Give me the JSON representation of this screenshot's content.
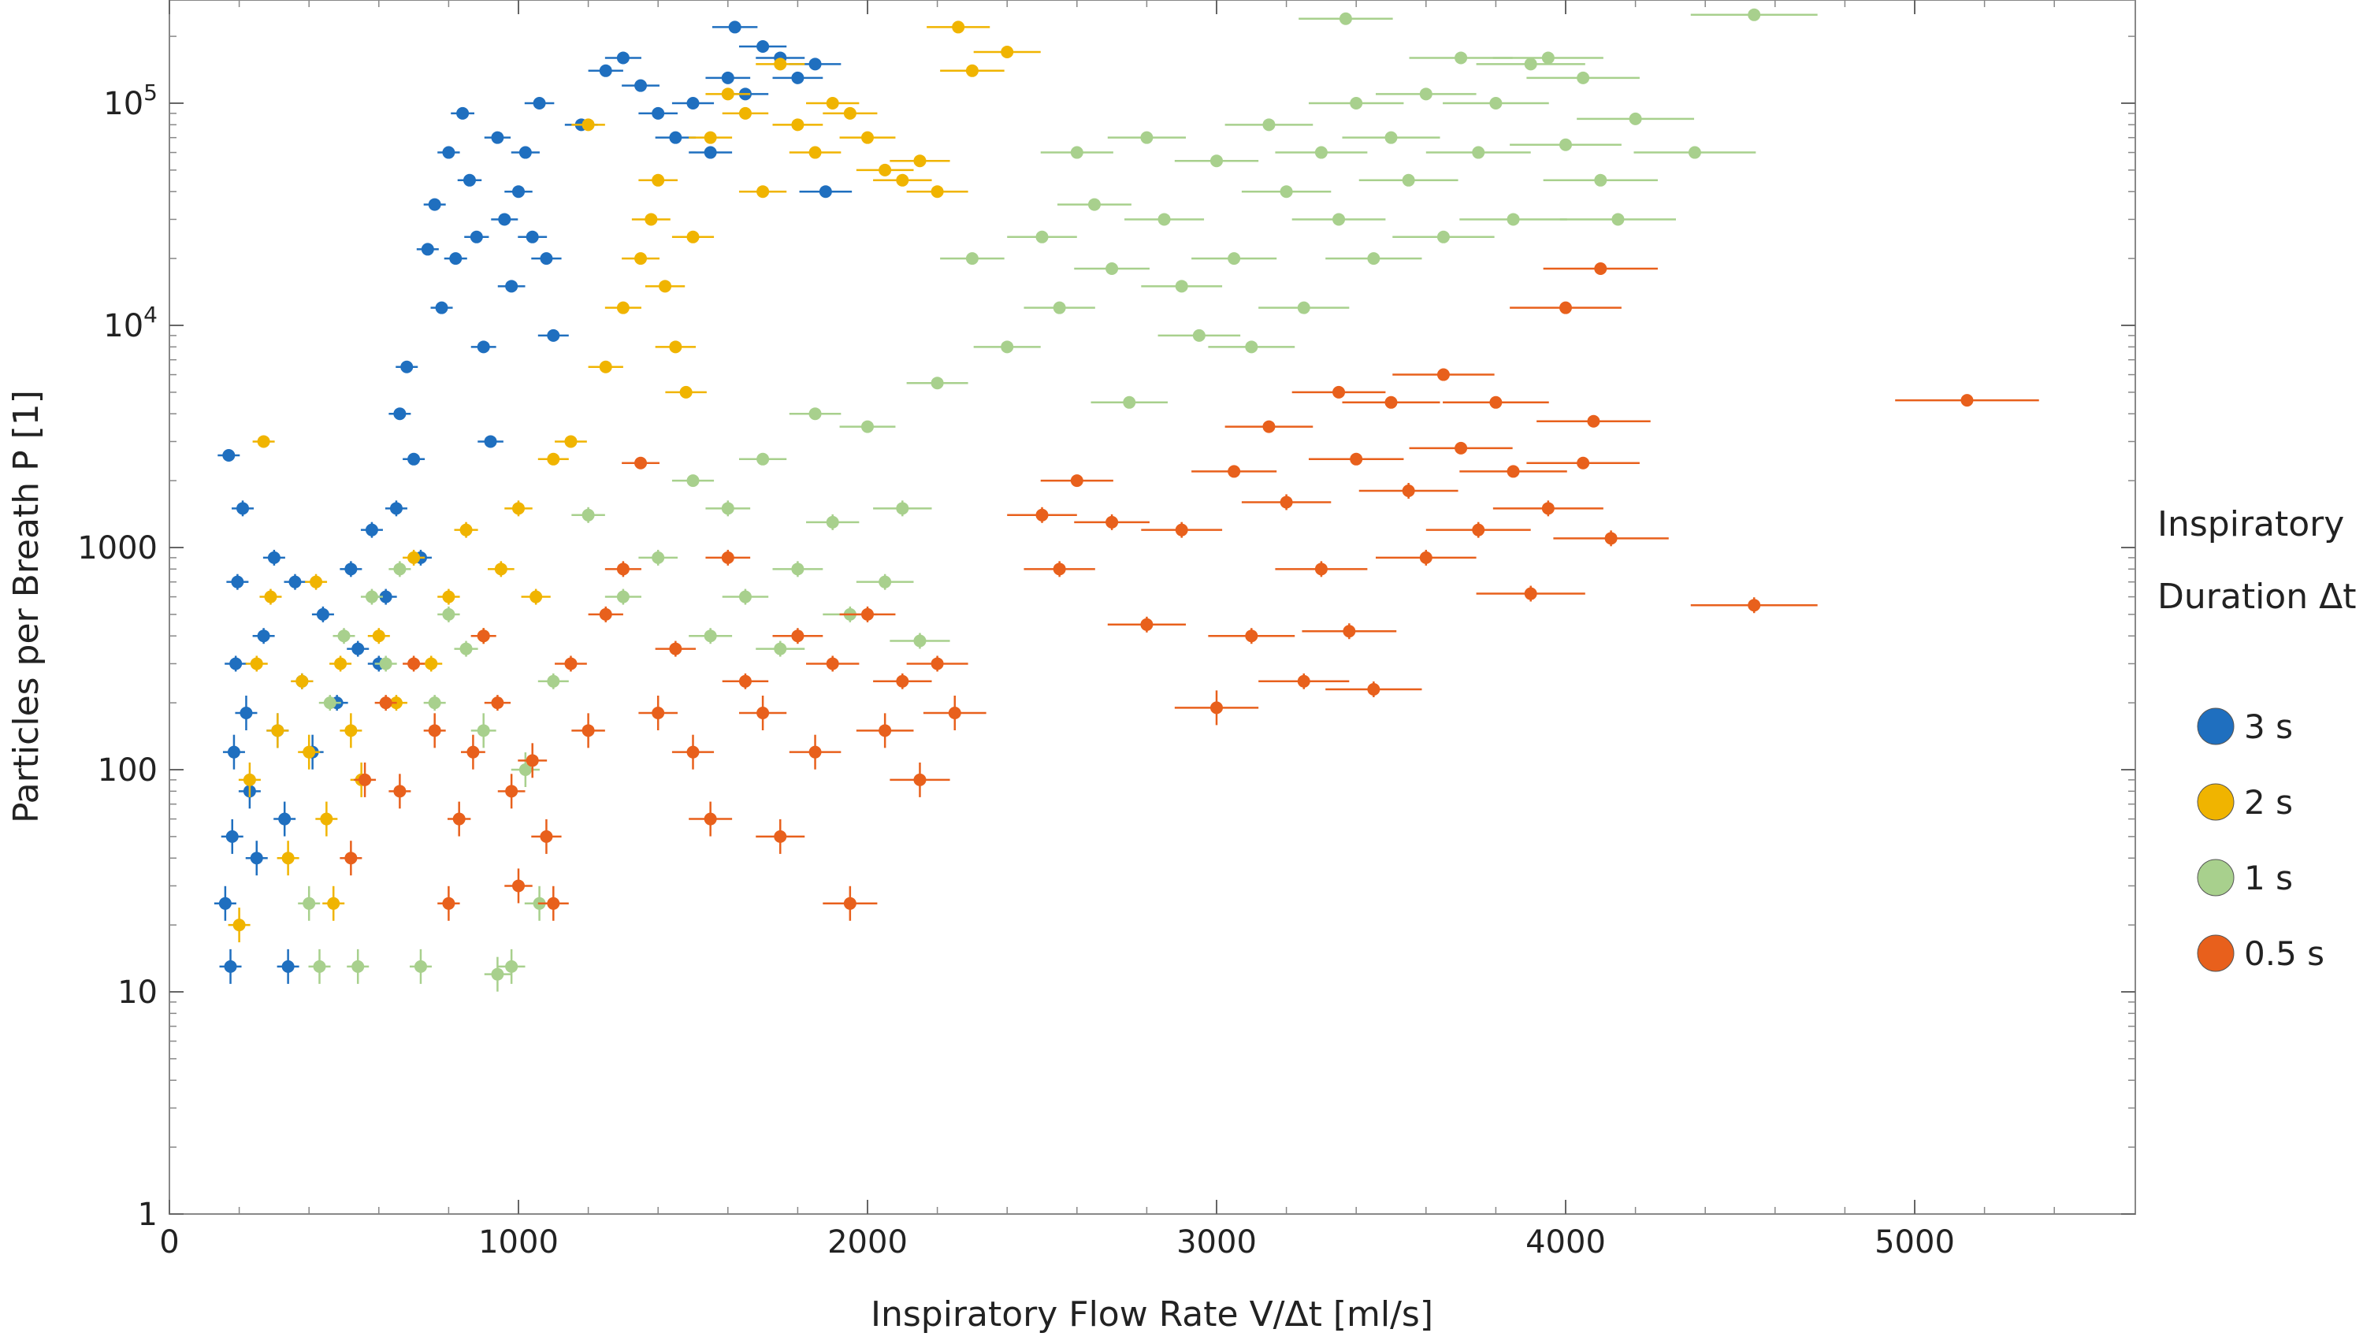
{
  "chart_data": {
    "type": "scatter",
    "title": "",
    "xlabel": "Inspiratory Flow Rate  V/Δt [ml/s]",
    "ylabel": "Particles per Breath  P [1]",
    "xlim": [
      0,
      5600
    ],
    "ylim": [
      1,
      300000
    ],
    "yscale": "log",
    "grid": false,
    "error_bars": true,
    "x_ticks": [
      0,
      1000,
      2000,
      3000,
      4000,
      5000
    ],
    "x_tick_labels": [
      "0",
      "1000",
      "2000",
      "3000",
      "4000",
      "5000"
    ],
    "y_ticks": [
      1,
      10,
      100,
      1000,
      10000,
      100000
    ],
    "y_tick_labels": [
      "1",
      "10",
      "100",
      "1000",
      "10^4",
      "10^5"
    ],
    "legend": {
      "title_line1": "Inspiratory",
      "title_line2": "Duration Δt",
      "placement": "right"
    },
    "series": [
      {
        "name": "3 s",
        "color": "#1f6fbf",
        "points": [
          [
            160,
            25
          ],
          [
            175,
            13
          ],
          [
            180,
            50
          ],
          [
            185,
            120
          ],
          [
            190,
            300
          ],
          [
            195,
            700
          ],
          [
            170,
            2600
          ],
          [
            210,
            1500
          ],
          [
            220,
            180
          ],
          [
            230,
            80
          ],
          [
            250,
            40
          ],
          [
            270,
            400
          ],
          [
            300,
            900
          ],
          [
            310,
            150
          ],
          [
            330,
            60
          ],
          [
            340,
            13
          ],
          [
            360,
            700
          ],
          [
            380,
            250
          ],
          [
            410,
            120
          ],
          [
            440,
            500
          ],
          [
            480,
            200
          ],
          [
            520,
            800
          ],
          [
            540,
            350
          ],
          [
            580,
            1200
          ],
          [
            600,
            300
          ],
          [
            620,
            600
          ],
          [
            650,
            1500
          ],
          [
            660,
            4000
          ],
          [
            680,
            6500
          ],
          [
            700,
            2500
          ],
          [
            720,
            900
          ],
          [
            740,
            22000
          ],
          [
            760,
            35000
          ],
          [
            780,
            12000
          ],
          [
            800,
            60000
          ],
          [
            820,
            20000
          ],
          [
            840,
            90000
          ],
          [
            860,
            45000
          ],
          [
            880,
            25000
          ],
          [
            900,
            8000
          ],
          [
            920,
            3000
          ],
          [
            940,
            70000
          ],
          [
            960,
            30000
          ],
          [
            980,
            15000
          ],
          [
            1000,
            40000
          ],
          [
            1020,
            60000
          ],
          [
            1040,
            25000
          ],
          [
            1060,
            100000
          ],
          [
            1080,
            20000
          ],
          [
            1100,
            9000
          ],
          [
            1180,
            80000
          ],
          [
            1250,
            140000
          ],
          [
            1300,
            160000
          ],
          [
            1350,
            120000
          ],
          [
            1400,
            90000
          ],
          [
            1450,
            70000
          ],
          [
            1500,
            100000
          ],
          [
            1550,
            60000
          ],
          [
            1600,
            130000
          ],
          [
            1620,
            220000
          ],
          [
            1650,
            110000
          ],
          [
            1700,
            180000
          ],
          [
            1750,
            160000
          ],
          [
            1800,
            130000
          ],
          [
            1850,
            150000
          ],
          [
            1880,
            40000
          ]
        ]
      },
      {
        "name": "2 s",
        "color": "#f0b400",
        "points": [
          [
            200,
            20
          ],
          [
            230,
            90
          ],
          [
            250,
            300
          ],
          [
            270,
            3000
          ],
          [
            290,
            600
          ],
          [
            310,
            150
          ],
          [
            340,
            40
          ],
          [
            380,
            250
          ],
          [
            400,
            120
          ],
          [
            420,
            700
          ],
          [
            450,
            60
          ],
          [
            470,
            25
          ],
          [
            490,
            300
          ],
          [
            520,
            150
          ],
          [
            550,
            90
          ],
          [
            600,
            400
          ],
          [
            650,
            200
          ],
          [
            700,
            900
          ],
          [
            750,
            300
          ],
          [
            800,
            600
          ],
          [
            850,
            1200
          ],
          [
            900,
            400
          ],
          [
            950,
            800
          ],
          [
            1000,
            1500
          ],
          [
            1050,
            600
          ],
          [
            1100,
            2500
          ],
          [
            1150,
            3000
          ],
          [
            1200,
            80000
          ],
          [
            1250,
            6500
          ],
          [
            1300,
            12000
          ],
          [
            1350,
            20000
          ],
          [
            1380,
            30000
          ],
          [
            1400,
            45000
          ],
          [
            1420,
            15000
          ],
          [
            1450,
            8000
          ],
          [
            1480,
            5000
          ],
          [
            1500,
            25000
          ],
          [
            1550,
            70000
          ],
          [
            1600,
            110000
          ],
          [
            1650,
            90000
          ],
          [
            1700,
            40000
          ],
          [
            1750,
            150000
          ],
          [
            1800,
            80000
          ],
          [
            1850,
            60000
          ],
          [
            1900,
            100000
          ],
          [
            1950,
            90000
          ],
          [
            2000,
            70000
          ],
          [
            2050,
            50000
          ],
          [
            2100,
            45000
          ],
          [
            2150,
            55000
          ],
          [
            2200,
            40000
          ],
          [
            2260,
            220000
          ],
          [
            2300,
            140000
          ],
          [
            2400,
            170000
          ]
        ]
      },
      {
        "name": "1 s",
        "color": "#a8d08d",
        "points": [
          [
            400,
            25
          ],
          [
            430,
            13
          ],
          [
            460,
            200
          ],
          [
            500,
            400
          ],
          [
            540,
            13
          ],
          [
            580,
            600
          ],
          [
            620,
            300
          ],
          [
            660,
            800
          ],
          [
            720,
            13
          ],
          [
            760,
            200
          ],
          [
            800,
            500
          ],
          [
            850,
            350
          ],
          [
            900,
            150
          ],
          [
            940,
            12
          ],
          [
            980,
            13
          ],
          [
            1020,
            100
          ],
          [
            1060,
            25
          ],
          [
            1100,
            250
          ],
          [
            1200,
            1400
          ],
          [
            1300,
            600
          ],
          [
            1400,
            900
          ],
          [
            1500,
            2000
          ],
          [
            1550,
            400
          ],
          [
            1600,
            1500
          ],
          [
            1650,
            600
          ],
          [
            1700,
            2500
          ],
          [
            1750,
            350
          ],
          [
            1800,
            800
          ],
          [
            1850,
            4000
          ],
          [
            1900,
            1300
          ],
          [
            1950,
            500
          ],
          [
            2000,
            3500
          ],
          [
            2050,
            700
          ],
          [
            2100,
            1500
          ],
          [
            2150,
            380
          ],
          [
            2200,
            5500
          ],
          [
            2300,
            20000
          ],
          [
            2400,
            8000
          ],
          [
            2500,
            25000
          ],
          [
            2550,
            12000
          ],
          [
            2600,
            60000
          ],
          [
            2650,
            35000
          ],
          [
            2700,
            18000
          ],
          [
            2750,
            4500
          ],
          [
            2800,
            70000
          ],
          [
            2850,
            30000
          ],
          [
            2900,
            15000
          ],
          [
            2950,
            9000
          ],
          [
            3000,
            55000
          ],
          [
            3050,
            20000
          ],
          [
            3100,
            8000
          ],
          [
            3150,
            80000
          ],
          [
            3200,
            40000
          ],
          [
            3250,
            12000
          ],
          [
            3300,
            60000
          ],
          [
            3350,
            30000
          ],
          [
            3370,
            240000
          ],
          [
            3400,
            100000
          ],
          [
            3450,
            20000
          ],
          [
            3500,
            70000
          ],
          [
            3550,
            45000
          ],
          [
            3600,
            110000
          ],
          [
            3650,
            25000
          ],
          [
            3700,
            160000
          ],
          [
            3750,
            60000
          ],
          [
            3800,
            100000
          ],
          [
            3850,
            30000
          ],
          [
            3900,
            150000
          ],
          [
            3950,
            160000
          ],
          [
            4000,
            65000
          ],
          [
            4050,
            130000
          ],
          [
            4100,
            45000
          ],
          [
            4150,
            30000
          ],
          [
            4200,
            85000
          ],
          [
            4370,
            60000
          ],
          [
            4540,
            250000
          ]
        ]
      },
      {
        "name": "0.5 s",
        "color": "#e8601c",
        "points": [
          [
            520,
            40
          ],
          [
            560,
            90
          ],
          [
            620,
            200
          ],
          [
            660,
            80
          ],
          [
            700,
            300
          ],
          [
            760,
            150
          ],
          [
            800,
            25
          ],
          [
            830,
            60
          ],
          [
            870,
            120
          ],
          [
            900,
            400
          ],
          [
            940,
            200
          ],
          [
            980,
            80
          ],
          [
            1000,
            30
          ],
          [
            1040,
            110
          ],
          [
            1080,
            50
          ],
          [
            1100,
            25
          ],
          [
            1150,
            300
          ],
          [
            1200,
            150
          ],
          [
            1250,
            500
          ],
          [
            1300,
            800
          ],
          [
            1350,
            2400
          ],
          [
            1400,
            180
          ],
          [
            1450,
            350
          ],
          [
            1500,
            120
          ],
          [
            1550,
            60
          ],
          [
            1600,
            900
          ],
          [
            1650,
            250
          ],
          [
            1700,
            180
          ],
          [
            1750,
            50
          ],
          [
            1800,
            400
          ],
          [
            1850,
            120
          ],
          [
            1900,
            300
          ],
          [
            1950,
            25
          ],
          [
            2000,
            500
          ],
          [
            2050,
            150
          ],
          [
            2100,
            250
          ],
          [
            2150,
            90
          ],
          [
            2200,
            300
          ],
          [
            2250,
            180
          ],
          [
            2500,
            1400
          ],
          [
            2550,
            800
          ],
          [
            2600,
            2000
          ],
          [
            2700,
            1300
          ],
          [
            2800,
            450
          ],
          [
            2900,
            1200
          ],
          [
            3000,
            190
          ],
          [
            3050,
            2200
          ],
          [
            3100,
            400
          ],
          [
            3150,
            3500
          ],
          [
            3200,
            1600
          ],
          [
            3250,
            250
          ],
          [
            3300,
            800
          ],
          [
            3350,
            5000
          ],
          [
            3380,
            420
          ],
          [
            3400,
            2500
          ],
          [
            3450,
            230
          ],
          [
            3500,
            4500
          ],
          [
            3550,
            1800
          ],
          [
            3600,
            900
          ],
          [
            3650,
            6000
          ],
          [
            3700,
            2800
          ],
          [
            3750,
            1200
          ],
          [
            3800,
            4500
          ],
          [
            3850,
            2200
          ],
          [
            3900,
            620
          ],
          [
            3950,
            1500
          ],
          [
            4000,
            12000
          ],
          [
            4050,
            2400
          ],
          [
            4080,
            3700
          ],
          [
            4100,
            18000
          ],
          [
            4130,
            1100
          ],
          [
            4540,
            550
          ],
          [
            5150,
            4600
          ]
        ]
      }
    ]
  }
}
